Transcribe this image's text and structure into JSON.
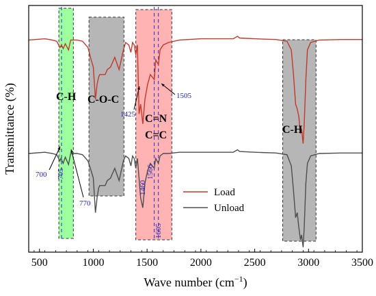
{
  "chart_data": {
    "type": "line",
    "xlabel": "Wave number (cm",
    "xlabel_sup": "−1",
    "xlabel_close": ")",
    "ylabel": "Transmittance (%)",
    "xlim": [
      400,
      3500
    ],
    "xticks": [
      500,
      1000,
      1500,
      2000,
      2500,
      3000,
      3500
    ],
    "y_ticks_shown": false,
    "legend_position": "center-right",
    "series": [
      {
        "name": "Load",
        "color": "#c0392b",
        "points": [
          [
            400,
            0.86
          ],
          [
            550,
            0.865
          ],
          [
            620,
            0.86
          ],
          [
            660,
            0.855
          ],
          [
            690,
            0.83
          ],
          [
            705,
            0.84
          ],
          [
            720,
            0.825
          ],
          [
            740,
            0.845
          ],
          [
            770,
            0.82
          ],
          [
            790,
            0.86
          ],
          [
            850,
            0.86
          ],
          [
            900,
            0.855
          ],
          [
            950,
            0.83
          ],
          [
            980,
            0.78
          ],
          [
            1000,
            0.75
          ],
          [
            1020,
            0.62
          ],
          [
            1035,
            0.68
          ],
          [
            1050,
            0.71
          ],
          [
            1060,
            0.72
          ],
          [
            1080,
            0.72
          ],
          [
            1110,
            0.72
          ],
          [
            1130,
            0.74
          ],
          [
            1160,
            0.75
          ],
          [
            1200,
            0.79
          ],
          [
            1240,
            0.74
          ],
          [
            1260,
            0.78
          ],
          [
            1280,
            0.82
          ],
          [
            1300,
            0.85
          ],
          [
            1330,
            0.84
          ],
          [
            1350,
            0.81
          ],
          [
            1365,
            0.85
          ],
          [
            1380,
            0.84
          ],
          [
            1395,
            0.8
          ],
          [
            1410,
            0.84
          ],
          [
            1425,
            0.56
          ],
          [
            1440,
            0.6
          ],
          [
            1460,
            0.52
          ],
          [
            1480,
            0.62
          ],
          [
            1505,
            0.68
          ],
          [
            1530,
            0.72
          ],
          [
            1566,
            0.7
          ],
          [
            1580,
            0.78
          ],
          [
            1605,
            0.76
          ],
          [
            1620,
            0.82
          ],
          [
            1650,
            0.84
          ],
          [
            1700,
            0.85
          ],
          [
            1800,
            0.86
          ],
          [
            2000,
            0.865
          ],
          [
            2200,
            0.865
          ],
          [
            2300,
            0.865
          ],
          [
            2340,
            0.875
          ],
          [
            2360,
            0.868
          ],
          [
            2500,
            0.865
          ],
          [
            2700,
            0.862
          ],
          [
            2800,
            0.855
          ],
          [
            2840,
            0.82
          ],
          [
            2860,
            0.72
          ],
          [
            2880,
            0.6
          ],
          [
            2895,
            0.58
          ],
          [
            2910,
            0.55
          ],
          [
            2925,
            0.48
          ],
          [
            2935,
            0.5
          ],
          [
            2950,
            0.44
          ],
          [
            2960,
            0.52
          ],
          [
            2975,
            0.7
          ],
          [
            2990,
            0.82
          ],
          [
            3020,
            0.85
          ],
          [
            3100,
            0.86
          ],
          [
            3300,
            0.862
          ],
          [
            3500,
            0.862
          ]
        ]
      },
      {
        "name": "Unload",
        "color": "#4d4d4d",
        "points": [
          [
            400,
            0.4
          ],
          [
            550,
            0.405
          ],
          [
            620,
            0.4
          ],
          [
            660,
            0.395
          ],
          [
            690,
            0.37
          ],
          [
            700,
            0.38
          ],
          [
            720,
            0.36
          ],
          [
            740,
            0.385
          ],
          [
            770,
            0.355
          ],
          [
            790,
            0.4
          ],
          [
            850,
            0.4
          ],
          [
            900,
            0.395
          ],
          [
            950,
            0.37
          ],
          [
            980,
            0.33
          ],
          [
            1000,
            0.3
          ],
          [
            1020,
            0.16
          ],
          [
            1035,
            0.22
          ],
          [
            1050,
            0.26
          ],
          [
            1060,
            0.27
          ],
          [
            1080,
            0.27
          ],
          [
            1110,
            0.27
          ],
          [
            1130,
            0.29
          ],
          [
            1160,
            0.3
          ],
          [
            1200,
            0.34
          ],
          [
            1240,
            0.29
          ],
          [
            1260,
            0.33
          ],
          [
            1280,
            0.37
          ],
          [
            1300,
            0.39
          ],
          [
            1330,
            0.38
          ],
          [
            1350,
            0.35
          ],
          [
            1365,
            0.39
          ],
          [
            1380,
            0.38
          ],
          [
            1395,
            0.34
          ],
          [
            1410,
            0.38
          ],
          [
            1425,
            0.3
          ],
          [
            1440,
            0.22
          ],
          [
            1460,
            0.18
          ],
          [
            1480,
            0.28
          ],
          [
            1505,
            0.33
          ],
          [
            1530,
            0.36
          ],
          [
            1566,
            0.34
          ],
          [
            1580,
            0.38
          ],
          [
            1605,
            0.36
          ],
          [
            1620,
            0.39
          ],
          [
            1650,
            0.4
          ],
          [
            1700,
            0.4
          ],
          [
            1800,
            0.405
          ],
          [
            2000,
            0.405
          ],
          [
            2200,
            0.405
          ],
          [
            2300,
            0.405
          ],
          [
            2340,
            0.415
          ],
          [
            2360,
            0.408
          ],
          [
            2500,
            0.405
          ],
          [
            2700,
            0.402
          ],
          [
            2800,
            0.395
          ],
          [
            2840,
            0.35
          ],
          [
            2860,
            0.25
          ],
          [
            2880,
            0.14
          ],
          [
            2895,
            0.16
          ],
          [
            2910,
            0.1
          ],
          [
            2925,
            0.05
          ],
          [
            2935,
            0.07
          ],
          [
            2950,
            0.02
          ],
          [
            2960,
            0.1
          ],
          [
            2975,
            0.28
          ],
          [
            2990,
            0.36
          ],
          [
            3020,
            0.39
          ],
          [
            3100,
            0.4
          ],
          [
            3300,
            0.402
          ],
          [
            3500,
            0.402
          ]
        ]
      }
    ],
    "bands": [
      {
        "label": "C-H",
        "x0": 680,
        "x1": 815,
        "fill": "#7dff7d",
        "opacity": 0.75
      },
      {
        "label": "C-O-C",
        "x0": 960,
        "x1": 1285,
        "fill": "#9e9e9e",
        "opacity": 0.75
      },
      {
        "label": "C=N\nC=C",
        "x0": 1395,
        "x1": 1730,
        "fill": "#ff9a9a",
        "opacity": 0.75
      },
      {
        "label": "C-H",
        "x0": 2760,
        "x1": 3070,
        "fill": "#9e9e9e",
        "opacity": 0.75
      }
    ],
    "band_labels": {
      "band1": "C-H",
      "band2": "C-O-C",
      "band3_line1": "C=N",
      "band3_line2": "C=C",
      "band4": "C-H"
    },
    "annotations": [
      "700",
      "705",
      "770",
      "1425",
      "1505",
      "1460",
      "1566",
      "1605"
    ],
    "dashed_lines": [
      705,
      1566,
      1605
    ]
  }
}
